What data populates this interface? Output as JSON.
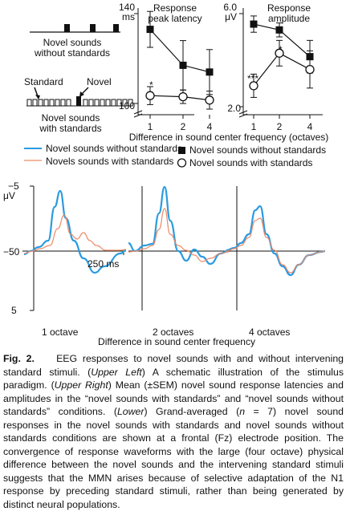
{
  "paradigm": {
    "top_label": "Novel sounds\nwithout standards",
    "standard_label": "Standard",
    "novel_label": "Novel",
    "bottom_label": "Novel sounds\nwith standards"
  },
  "latency": {
    "title": "Response\npeak latency",
    "unit": "ms",
    "y_max_label": "140",
    "y_min_label": "100",
    "star": "*"
  },
  "amplitude": {
    "title": "Response\namplitude",
    "unit": "μV",
    "y_max_label": "6.0",
    "y_min_label": "2.0",
    "star1": "***",
    "star2": "*"
  },
  "shared_xlabel": "Difference in sound center frequency (octaves)",
  "legend_markers": {
    "without": "Novel sounds without standards",
    "with": "Novel sounds with standards"
  },
  "legend_lines": {
    "without": "Novel sounds without standards",
    "with": "Novels sounds with standards"
  },
  "erp": {
    "unit": "μV",
    "y_top_label": "−5",
    "y_bottom_label": "5",
    "x_left_label": "−50",
    "x_right_label": "250 ms",
    "panel_labels": [
      "1 octave",
      "2 octaves",
      "4 octaves"
    ],
    "xlabel": "Difference in sound center frequency"
  },
  "caption": {
    "fig": "Fig. 2.",
    "text1": "EEG responses to novel sounds with and without intervening standard stimuli. (",
    "ul": "Upper Left",
    "text2": ") A schematic illustration of the stimulus paradigm. (",
    "ur": "Upper Right",
    "text3": ") Mean (±SEM) novel sound response latencies and amplitudes in the “novel sounds with standards” and “novel sounds without standards” conditions. (",
    "lo": "Lower",
    "text4": ") Grand-averaged (",
    "n": "n",
    "text5": " = 7) novel sound responses in the novel sounds with standards and novel sounds without standards conditions are shown at a frontal (Fz) electrode position. The convergence of response waveforms with the large (four octave) physical difference between the novel sounds and the intervening standard stimuli suggests that the MMN arises because of selective adaptation of the N1 response by preceding standard stimuli, rather than being generated by distinct neural populations."
  },
  "colors": {
    "blue": "#2b9be0",
    "salmon": "#ee8a66",
    "black": "#111111"
  },
  "chart_data": [
    {
      "type": "line",
      "title": "Response peak latency",
      "ylabel": "ms",
      "x": [
        1,
        2,
        4
      ],
      "ylim": [
        100,
        140
      ],
      "series": [
        {
          "name": "Novel sounds without standards",
          "values": [
            133,
            117,
            114
          ],
          "sem": [
            8,
            11,
            10
          ]
        },
        {
          "name": "Novel sounds with standards",
          "values": [
            103.5,
            103,
            101.5
          ],
          "sem": [
            4,
            3,
            4
          ]
        }
      ]
    },
    {
      "type": "line",
      "title": "Response amplitude",
      "ylabel": "μV",
      "x": [
        1,
        2,
        4
      ],
      "ylim": [
        2.0,
        6.0
      ],
      "series": [
        {
          "name": "Novel sounds without standards",
          "values": [
            5.55,
            5.3,
            4.15
          ],
          "sem": [
            0.35,
            0.3,
            0.7
          ]
        },
        {
          "name": "Novel sounds with standards",
          "values": [
            2.9,
            4.3,
            3.6
          ],
          "sem": [
            0.5,
            0.55,
            0.8
          ]
        }
      ]
    }
  ]
}
